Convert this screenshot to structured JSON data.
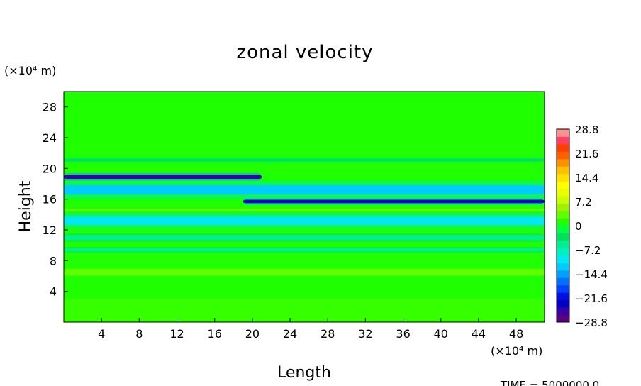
{
  "chart_data": {
    "type": "heatmap",
    "title": "zonal velocity",
    "xlabel": "Length",
    "ylabel": "Height",
    "x_unit": "(×10⁴ m)",
    "y_unit": "(×10⁴ m)",
    "xlim": [
      0,
      51
    ],
    "ylim": [
      0,
      30
    ],
    "x_ticks": [
      4,
      8,
      12,
      16,
      20,
      24,
      28,
      32,
      36,
      40,
      44,
      48
    ],
    "y_ticks": [
      4,
      8,
      12,
      16,
      20,
      24,
      28
    ],
    "colorbar": {
      "min": -28.8,
      "max": 28.8,
      "levels": 26,
      "tick_labels": [
        "28.8",
        "21.6",
        "14.4",
        "7.2",
        "0",
        "−7.2",
        "−14.4",
        "−21.6",
        "−28.8"
      ],
      "tick_values": [
        28.8,
        21.6,
        14.4,
        7.2,
        0,
        -7.2,
        -14.4,
        -21.6,
        -28.8
      ],
      "colors": [
        "#5a0080",
        "#3a00a8",
        "#0000c0",
        "#0010e0",
        "#0040ff",
        "#0070ff",
        "#00a0ff",
        "#00ccff",
        "#00e8f0",
        "#00f0c0",
        "#00f090",
        "#00e060",
        "#00ff40",
        "#20ff00",
        "#60ff00",
        "#a0f000",
        "#c8ff00",
        "#e8ff00",
        "#ffff00",
        "#ffe000",
        "#ffc000",
        "#ff9000",
        "#ff6000",
        "#ff4000",
        "#ff4060",
        "#ff9090"
      ]
    },
    "bands": [
      {
        "x": [
          0,
          21
        ],
        "y": 18.9,
        "value": -25,
        "width": 0.5
      },
      {
        "x": [
          19,
          51
        ],
        "y": 15.7,
        "value": -23,
        "width": 0.45
      },
      {
        "x": [
          0,
          51
        ],
        "y": 17.2,
        "value": -12,
        "width": 1.2
      },
      {
        "x": [
          0,
          51
        ],
        "y": 13.2,
        "value": -10,
        "width": 1.1
      },
      {
        "x": [
          0,
          51
        ],
        "y": 11.0,
        "value": -6,
        "width": 0.6
      },
      {
        "x": [
          0,
          51
        ],
        "y": 9.4,
        "value": -5,
        "width": 0.4
      },
      {
        "x": [
          0,
          51
        ],
        "y": 21.1,
        "value": -4,
        "width": 0.4
      },
      {
        "x": [
          0,
          51
        ],
        "y": 6.5,
        "value": 2.5,
        "width": 0.9
      },
      {
        "x": [
          0,
          51
        ],
        "y": 4.5,
        "value": 2,
        "width": 0.8
      },
      {
        "x": [
          0,
          51
        ],
        "y": 14.6,
        "value": 4,
        "width": 0.35
      }
    ]
  },
  "footer": "TIME = 5000000.0"
}
